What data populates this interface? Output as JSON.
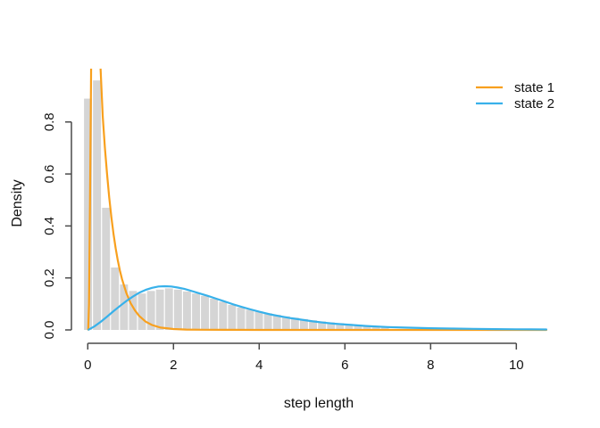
{
  "chart_data": {
    "type": "bar",
    "subtype": "histogram_with_density_curves",
    "title": "",
    "xlabel": "step length",
    "ylabel": "Density",
    "x_ticks": [
      0,
      2,
      4,
      6,
      8,
      10
    ],
    "y_tick_labels": [
      "0.0",
      "0.2",
      "0.4",
      "0.6",
      "0.8"
    ],
    "y_tick_step": 0.2,
    "xlim": [
      -0.4,
      11.0
    ],
    "ylim": [
      0,
      1.0
    ],
    "grid": "off",
    "legend_position": "top-right",
    "axis_color": "#4a4a4a",
    "histogram": {
      "color": "#d5d5d5",
      "bin_start": -0.1,
      "bin_width": 0.21,
      "densities": [
        0.89,
        0.96,
        0.47,
        0.24,
        0.175,
        0.15,
        0.14,
        0.15,
        0.155,
        0.16,
        0.155,
        0.148,
        0.14,
        0.131,
        0.12,
        0.108,
        0.096,
        0.086,
        0.078,
        0.071,
        0.064,
        0.058,
        0.052,
        0.047,
        0.042,
        0.037,
        0.033,
        0.029,
        0.026,
        0.023,
        0.02,
        0.017,
        0.014,
        0.011
      ]
    },
    "series": [
      {
        "name": "state 1",
        "color": "#F8A01E",
        "points": [
          [
            0.01,
            0.001
          ],
          [
            0.03,
            0.1
          ],
          [
            0.05,
            0.45
          ],
          [
            0.07,
            0.85
          ],
          [
            0.09,
            1.25
          ],
          [
            0.13,
            1.7
          ],
          [
            0.19,
            1.7
          ],
          [
            0.25,
            1.35
          ],
          [
            0.3,
            1.0
          ],
          [
            0.35,
            0.82
          ],
          [
            0.4,
            0.7
          ],
          [
            0.45,
            0.6
          ],
          [
            0.5,
            0.51
          ],
          [
            0.55,
            0.435
          ],
          [
            0.6,
            0.37
          ],
          [
            0.65,
            0.315
          ],
          [
            0.7,
            0.268
          ],
          [
            0.75,
            0.228
          ],
          [
            0.8,
            0.195
          ],
          [
            0.9,
            0.142
          ],
          [
            1.0,
            0.103
          ],
          [
            1.1,
            0.075
          ],
          [
            1.2,
            0.054
          ],
          [
            1.35,
            0.032
          ],
          [
            1.5,
            0.019
          ],
          [
            1.7,
            0.009
          ],
          [
            2.0,
            0.0035
          ],
          [
            2.3,
            0.0015
          ],
          [
            2.7,
            0.0006
          ],
          [
            3.2,
            0.0002
          ],
          [
            4.0,
            0.0001
          ],
          [
            5.0,
            0
          ],
          [
            6.0,
            0
          ],
          [
            8.0,
            0
          ],
          [
            10.0,
            0
          ],
          [
            10.7,
            0
          ]
        ]
      },
      {
        "name": "state 2",
        "color": "#38B1EA",
        "points": [
          [
            0.02,
            0.001
          ],
          [
            0.15,
            0.013
          ],
          [
            0.3,
            0.031
          ],
          [
            0.45,
            0.051
          ],
          [
            0.6,
            0.072
          ],
          [
            0.75,
            0.092
          ],
          [
            0.9,
            0.111
          ],
          [
            1.05,
            0.128
          ],
          [
            1.2,
            0.143
          ],
          [
            1.35,
            0.154
          ],
          [
            1.5,
            0.162
          ],
          [
            1.65,
            0.167
          ],
          [
            1.8,
            0.168
          ],
          [
            1.95,
            0.167
          ],
          [
            2.1,
            0.163
          ],
          [
            2.25,
            0.158
          ],
          [
            2.4,
            0.151
          ],
          [
            2.6,
            0.141
          ],
          [
            2.8,
            0.131
          ],
          [
            3.0,
            0.12
          ],
          [
            3.2,
            0.109
          ],
          [
            3.4,
            0.098
          ],
          [
            3.6,
            0.088
          ],
          [
            3.8,
            0.079
          ],
          [
            4.0,
            0.07
          ],
          [
            4.25,
            0.06
          ],
          [
            4.5,
            0.052
          ],
          [
            4.75,
            0.045
          ],
          [
            5.0,
            0.039
          ],
          [
            5.25,
            0.033
          ],
          [
            5.5,
            0.028
          ],
          [
            5.75,
            0.024
          ],
          [
            6.0,
            0.021
          ],
          [
            6.5,
            0.015
          ],
          [
            7.0,
            0.011
          ],
          [
            7.5,
            0.0085
          ],
          [
            8.0,
            0.0065
          ],
          [
            8.5,
            0.005
          ],
          [
            9.0,
            0.004
          ],
          [
            9.5,
            0.003
          ],
          [
            10.0,
            0.0025
          ],
          [
            10.35,
            0.002
          ],
          [
            10.7,
            0.0018
          ]
        ]
      }
    ],
    "legend": [
      {
        "label": "state 1",
        "color": "#F8A01E"
      },
      {
        "label": "state 2",
        "color": "#38B1EA"
      }
    ]
  }
}
